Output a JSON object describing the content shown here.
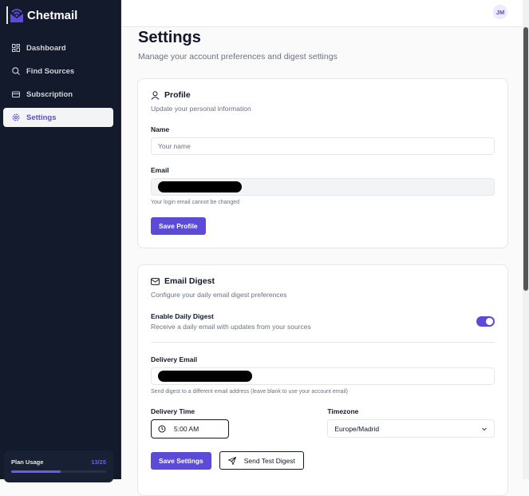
{
  "app": {
    "name": "Chetmail"
  },
  "sidebar": {
    "items": [
      {
        "label": "Dashboard",
        "icon": "dashboard-icon"
      },
      {
        "label": "Find Sources",
        "icon": "search-icon"
      },
      {
        "label": "Subscription",
        "icon": "credit-card-icon"
      },
      {
        "label": "Settings",
        "icon": "gear-icon",
        "active": true
      }
    ],
    "usage": {
      "label": "Plan Usage",
      "count": "13/25",
      "fraction": 0.52
    }
  },
  "header": {
    "avatar": "JM"
  },
  "page": {
    "title": "Settings",
    "subtitle": "Manage your account preferences and digest settings"
  },
  "profile": {
    "title": "Profile",
    "desc": "Update your personal information",
    "name_label": "Name",
    "name_placeholder": "Your name",
    "email_label": "Email",
    "email_hint": "Your login email cannot be changed",
    "save": "Save Profile"
  },
  "digest": {
    "title": "Email Digest",
    "desc": "Configure your daily email digest preferences",
    "enable_label": "Enable Daily Digest",
    "enable_desc": "Receive a daily email with updates from your sources",
    "enabled": true,
    "delivery_email_label": "Delivery Email",
    "delivery_email_hint": "Send digest to a different email address (leave blank to use your account email)",
    "time_label": "Delivery Time",
    "time_value": "5:00 AM",
    "tz_label": "Timezone",
    "tz_value": "Europe/Madrid",
    "save": "Save Settings",
    "test": "Send Test Digest"
  },
  "colors": {
    "accent": "#5b4bd6",
    "sidebar": "#121a2b"
  }
}
